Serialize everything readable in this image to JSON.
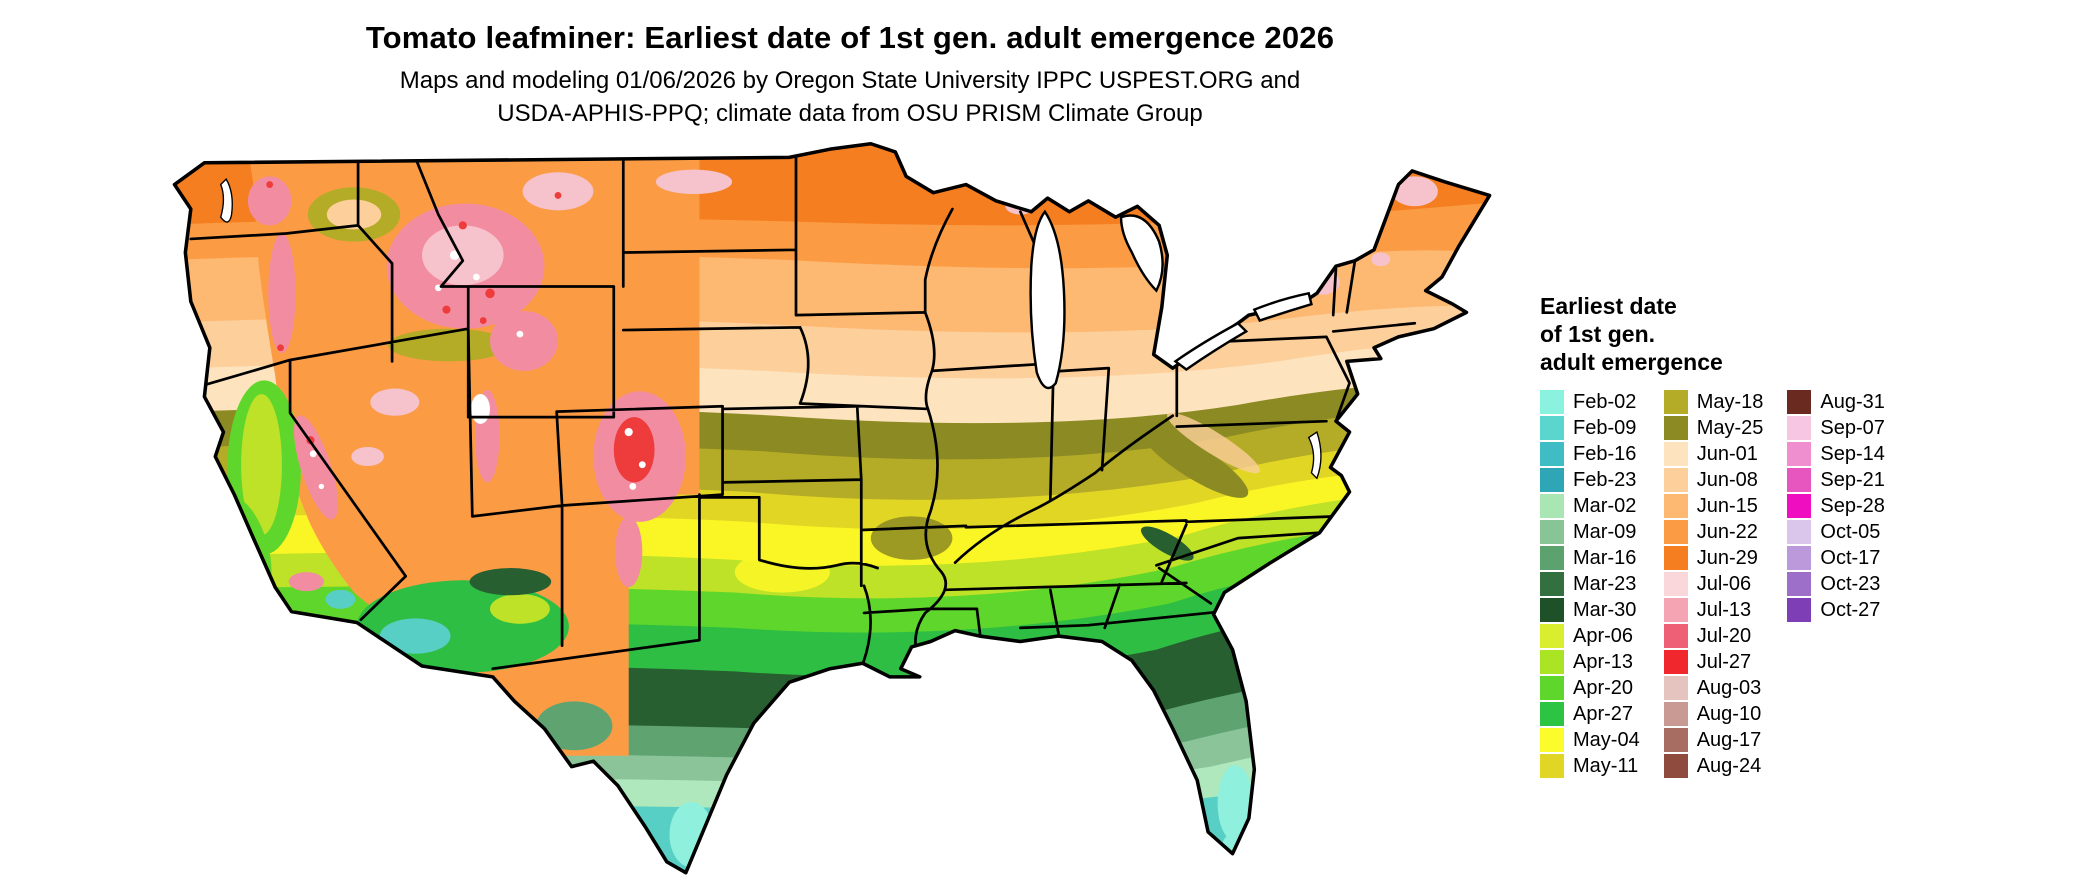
{
  "title": "Tomato leafminer: Earliest date of 1st gen. adult emergence 2026",
  "subtitle": {
    "line1": "Maps and modeling 01/06/2026 by Oregon State University IPPC USPEST.ORG and",
    "line2": "USDA-APHIS-PPQ; climate data from OSU PRISM Climate Group"
  },
  "legend": {
    "title_lines": [
      "Earliest date",
      "of 1st gen.",
      "adult emergence"
    ],
    "columns": [
      {
        "entries": [
          {
            "label": "Feb-02",
            "color": "#8CF2E0"
          },
          {
            "label": "Feb-09",
            "color": "#5AD6CE"
          },
          {
            "label": "Feb-16",
            "color": "#3FBCC4"
          },
          {
            "label": "Feb-23",
            "color": "#2FA6B5"
          },
          {
            "label": "Mar-02",
            "color": "#A9E6B4"
          },
          {
            "label": "Mar-09",
            "color": "#88C495"
          },
          {
            "label": "Mar-16",
            "color": "#5CA26F"
          },
          {
            "label": "Mar-23",
            "color": "#336F3F"
          },
          {
            "label": "Mar-30",
            "color": "#1F5129"
          },
          {
            "label": "Apr-06",
            "color": "#D9EE2F"
          },
          {
            "label": "Apr-13",
            "color": "#ABE425"
          },
          {
            "label": "Apr-20",
            "color": "#5FD62B"
          },
          {
            "label": "Apr-27",
            "color": "#2EC443"
          },
          {
            "label": "May-04",
            "color": "#FCFC2C"
          },
          {
            "label": "May-11",
            "color": "#E2D625"
          }
        ]
      },
      {
        "entries": [
          {
            "label": "May-18",
            "color": "#B4AC26"
          },
          {
            "label": "May-25",
            "color": "#8C8A23"
          },
          {
            "label": "Jun-01",
            "color": "#FDE3BE"
          },
          {
            "label": "Jun-08",
            "color": "#FDCF9B"
          },
          {
            "label": "Jun-15",
            "color": "#FDB871"
          },
          {
            "label": "Jun-22",
            "color": "#FB9C45"
          },
          {
            "label": "Jun-29",
            "color": "#F57E20"
          },
          {
            "label": "Jul-06",
            "color": "#F9D7DB"
          },
          {
            "label": "Jul-13",
            "color": "#F4A4B2"
          },
          {
            "label": "Jul-20",
            "color": "#EE6075"
          },
          {
            "label": "Jul-27",
            "color": "#F0282D"
          },
          {
            "label": "Aug-03",
            "color": "#E5C4C0"
          },
          {
            "label": "Aug-10",
            "color": "#C99A94"
          },
          {
            "label": "Aug-17",
            "color": "#A86D62"
          },
          {
            "label": "Aug-24",
            "color": "#8F4B3E"
          }
        ]
      },
      {
        "entries": [
          {
            "label": "Aug-31",
            "color": "#6B2A20"
          },
          {
            "label": "Sep-07",
            "color": "#F7C6E3"
          },
          {
            "label": "Sep-14",
            "color": "#F08FD0"
          },
          {
            "label": "Sep-21",
            "color": "#E755BE"
          },
          {
            "label": "Sep-28",
            "color": "#F00FC0"
          },
          {
            "label": "Oct-05",
            "color": "#D9C6EA"
          },
          {
            "label": "Oct-17",
            "color": "#BB99DB"
          },
          {
            "label": "Oct-23",
            "color": "#9D6FC9"
          },
          {
            "label": "Oct-27",
            "color": "#7E3EB6"
          }
        ]
      }
    ]
  },
  "map": {
    "description": "Contiguous United States raster map colored by earliest adult emergence date",
    "colors": {
      "jun29": "#F57E20",
      "jun22": "#FB9C45",
      "jun15": "#FDB871",
      "jun08": "#FDCF9B",
      "jun01": "#FDE3BE",
      "may25": "#8C8A23",
      "may18": "#B4AC26",
      "may11": "#E2D625",
      "may04": "#FAF626",
      "apr_yellow_green": "#BDE228",
      "apr_bright_green": "#5FD62B",
      "apr_deep_green": "#2EBE43",
      "mar_dark_green": "#275F31",
      "mar_sea_green": "#5FA371",
      "mar_soft_green": "#8CC49A",
      "mar_pale_green": "#AEE8BC",
      "feb_teal": "#58CFC4",
      "feb_cyan": "#8FF0DE",
      "pink": "#F28CA0",
      "light_pink": "#F6C2CC",
      "red": "#EE3B3B",
      "white": "#FFFFFF",
      "border": "#000000"
    }
  }
}
